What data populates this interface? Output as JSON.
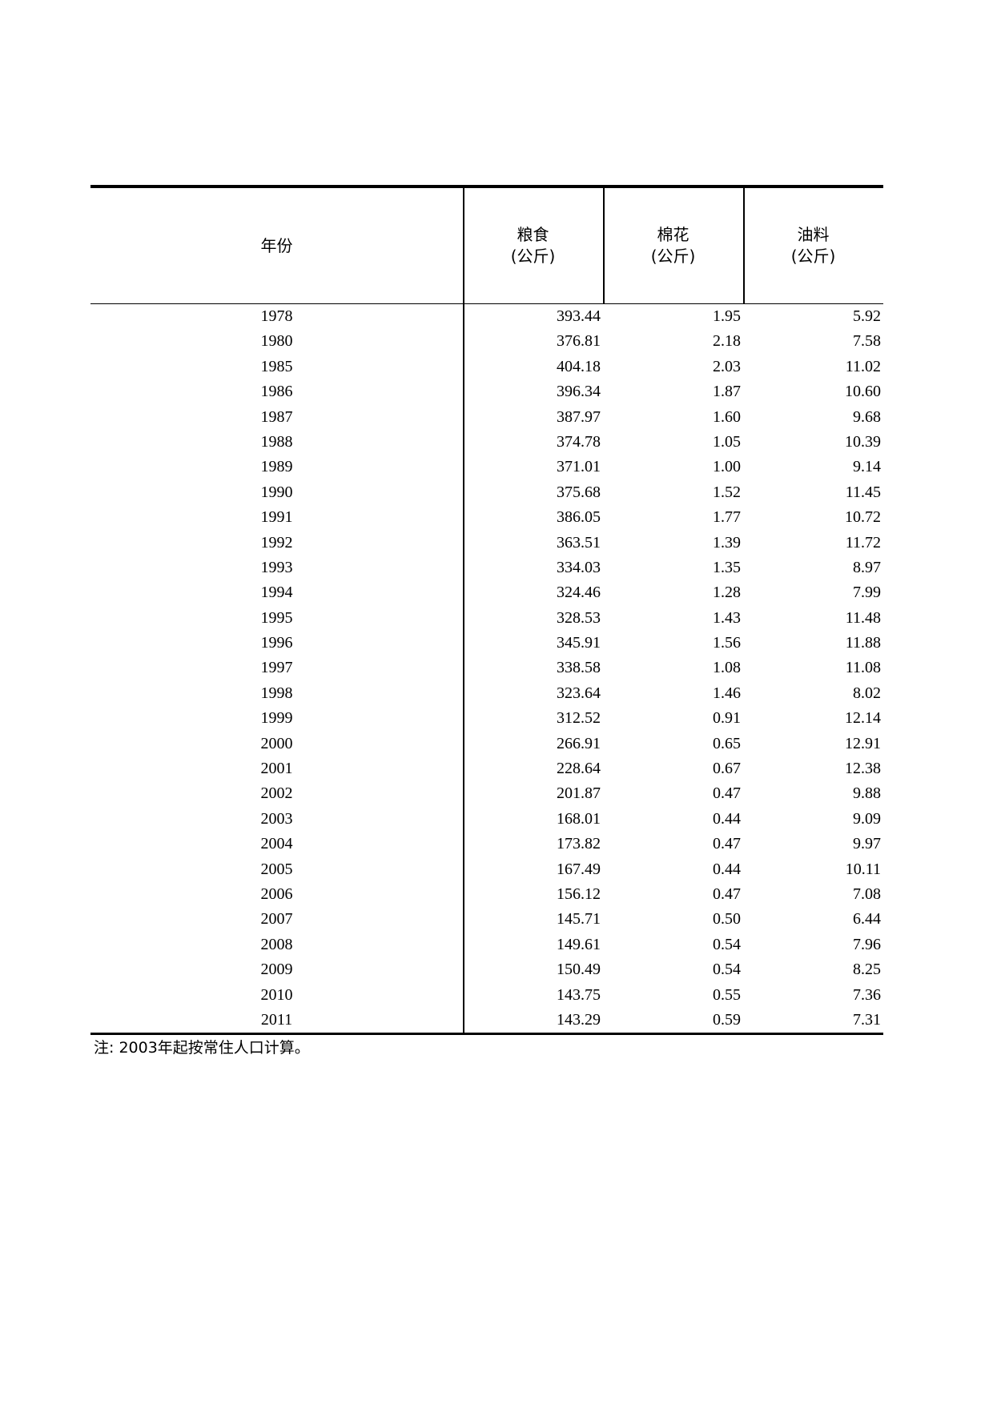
{
  "table": {
    "headers": [
      {
        "title": "年份",
        "unit": ""
      },
      {
        "title": "粮食",
        "unit": "(公斤)"
      },
      {
        "title": "棉花",
        "unit": "(公斤)"
      },
      {
        "title": "油料",
        "unit": "(公斤)"
      }
    ],
    "rows": [
      [
        "1978",
        "393.44",
        "1.95",
        "5.92"
      ],
      [
        "1980",
        "376.81",
        "2.18",
        "7.58"
      ],
      [
        "1985",
        "404.18",
        "2.03",
        "11.02"
      ],
      [
        "1986",
        "396.34",
        "1.87",
        "10.60"
      ],
      [
        "1987",
        "387.97",
        "1.60",
        "9.68"
      ],
      [
        "1988",
        "374.78",
        "1.05",
        "10.39"
      ],
      [
        "1989",
        "371.01",
        "1.00",
        "9.14"
      ],
      [
        "1990",
        "375.68",
        "1.52",
        "11.45"
      ],
      [
        "1991",
        "386.05",
        "1.77",
        "10.72"
      ],
      [
        "1992",
        "363.51",
        "1.39",
        "11.72"
      ],
      [
        "1993",
        "334.03",
        "1.35",
        "8.97"
      ],
      [
        "1994",
        "324.46",
        "1.28",
        "7.99"
      ],
      [
        "1995",
        "328.53",
        "1.43",
        "11.48"
      ],
      [
        "1996",
        "345.91",
        "1.56",
        "11.88"
      ],
      [
        "1997",
        "338.58",
        "1.08",
        "11.08"
      ],
      [
        "1998",
        "323.64",
        "1.46",
        "8.02"
      ],
      [
        "1999",
        "312.52",
        "0.91",
        "12.14"
      ],
      [
        "2000",
        "266.91",
        "0.65",
        "12.91"
      ],
      [
        "2001",
        "228.64",
        "0.67",
        "12.38"
      ],
      [
        "2002",
        "201.87",
        "0.47",
        "9.88"
      ],
      [
        "2003",
        "168.01",
        "0.44",
        "9.09"
      ],
      [
        "2004",
        "173.82",
        "0.47",
        "9.97"
      ],
      [
        "2005",
        "167.49",
        "0.44",
        "10.11"
      ],
      [
        "2006",
        "156.12",
        "0.47",
        "7.08"
      ],
      [
        "2007",
        "145.71",
        "0.50",
        "6.44"
      ],
      [
        "2008",
        "149.61",
        "0.54",
        "7.96"
      ],
      [
        "2009",
        "150.49",
        "0.54",
        "8.25"
      ],
      [
        "2010",
        "143.75",
        "0.55",
        "7.36"
      ],
      [
        "2011",
        "143.29",
        "0.59",
        "7.31"
      ]
    ]
  },
  "note": "注: 2003年起按常住人口计算。"
}
